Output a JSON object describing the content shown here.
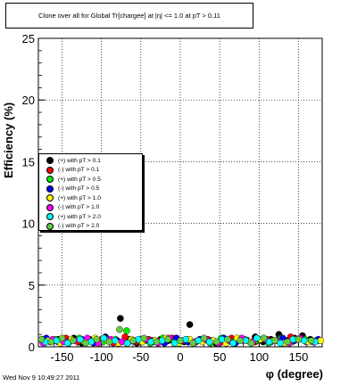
{
  "chart_data": {
    "type": "scatter",
    "title": "Clone  over all for Global Tr[chargee] at |η| <= 1.0 at pT > 0.11",
    "xlabel": "φ (degree)",
    "ylabel": "Efficiency (%)",
    "xlim": [
      -180,
      180
    ],
    "ylim": [
      0,
      25
    ],
    "x_ticks": [
      -150,
      -100,
      -50,
      0,
      50,
      100,
      150
    ],
    "y_ticks": [
      0,
      5,
      10,
      15,
      20,
      25
    ],
    "grid": true,
    "legend_position": "left",
    "series": [
      {
        "name": "(+) with pT > 0.1",
        "color": "#000000",
        "x": [
          -175,
          -165,
          -155,
          -145,
          -135,
          -125,
          -115,
          -105,
          -95,
          -85,
          -76,
          -65,
          -55,
          -45,
          -35,
          -25,
          -15,
          -5,
          5,
          12,
          25,
          35,
          45,
          55,
          65,
          75,
          85,
          95,
          105,
          115,
          125,
          135,
          145,
          155,
          165,
          175
        ],
        "y": [
          0.5,
          0.4,
          0.6,
          0.5,
          0.7,
          0.3,
          0.6,
          0.4,
          0.8,
          0.5,
          2.3,
          0.6,
          0.3,
          0.5,
          0.4,
          0.6,
          0.5,
          0.7,
          0.4,
          1.8,
          0.6,
          0.5,
          0.3,
          0.7,
          0.4,
          0.6,
          0.5,
          0.8,
          0.4,
          0.6,
          1.0,
          0.5,
          0.7,
          0.9,
          0.6,
          0.5
        ]
      },
      {
        "name": "(-) with pT > 0.1",
        "color": "#ff0000",
        "x": [
          -175,
          -160,
          -145,
          -130,
          -115,
          -100,
          -85,
          -70,
          -55,
          -40,
          -25,
          -10,
          5,
          20,
          35,
          50,
          65,
          80,
          95,
          110,
          125,
          140,
          155,
          170
        ],
        "y": [
          0.6,
          0.5,
          0.7,
          0.4,
          0.5,
          0.6,
          0.3,
          0.8,
          0.4,
          0.6,
          0.5,
          0.7,
          0.5,
          0.4,
          0.6,
          0.3,
          0.7,
          0.5,
          0.4,
          0.6,
          0.5,
          0.8,
          0.6,
          0.4
        ]
      },
      {
        "name": "(+) with pT > 0.5",
        "color": "#00ee00",
        "x": [
          -172,
          -158,
          -142,
          -128,
          -112,
          -98,
          -82,
          -68,
          -52,
          -38,
          -22,
          -8,
          8,
          22,
          38,
          52,
          68,
          82,
          98,
          112,
          128,
          142,
          158,
          172
        ],
        "y": [
          0.4,
          0.6,
          0.3,
          0.7,
          0.5,
          0.4,
          0.6,
          1.3,
          0.5,
          0.3,
          0.7,
          0.4,
          0.6,
          0.5,
          0.3,
          0.7,
          0.4,
          0.6,
          0.5,
          0.3,
          0.7,
          0.4,
          0.6,
          0.5
        ]
      },
      {
        "name": "(-) with pT > 0.5",
        "color": "#0000ff",
        "x": [
          -170,
          -155,
          -140,
          -125,
          -110,
          -95,
          -80,
          -65,
          -50,
          -35,
          -20,
          -5,
          10,
          25,
          40,
          55,
          70,
          85,
          100,
          115,
          130,
          145,
          160,
          175
        ],
        "y": [
          0.7,
          0.4,
          0.5,
          0.6,
          0.3,
          0.7,
          0.5,
          0.4,
          0.6,
          0.5,
          0.3,
          0.7,
          0.4,
          0.6,
          0.5,
          0.7,
          0.3,
          0.5,
          0.6,
          0.4,
          0.7,
          0.5,
          0.4,
          0.6
        ]
      },
      {
        "name": "(+) with pT > 1.0",
        "color": "#ffff00",
        "x": [
          -168,
          -152,
          -138,
          -122,
          -108,
          -92,
          -78,
          -62,
          -48,
          -32,
          -18,
          -2,
          12,
          28,
          42,
          58,
          72,
          88,
          102,
          118,
          132,
          148,
          162,
          178
        ],
        "y": [
          0.5,
          0.3,
          0.6,
          0.4,
          0.7,
          0.5,
          0.3,
          0.6,
          0.4,
          0.5,
          0.7,
          0.3,
          0.6,
          0.4,
          0.5,
          0.3,
          0.7,
          0.4,
          0.6,
          0.5,
          0.3,
          0.6,
          0.4,
          0.5
        ]
      },
      {
        "name": "(-) with pT > 1.0",
        "color": "#ff00ff",
        "x": [
          -174,
          -162,
          -148,
          -134,
          -118,
          -104,
          -88,
          -74,
          -58,
          -44,
          -28,
          -14,
          2,
          18,
          32,
          48,
          62,
          78,
          92,
          108,
          122,
          138,
          152,
          168
        ],
        "y": [
          0.3,
          0.6,
          0.4,
          0.5,
          0.7,
          0.3,
          0.6,
          0.4,
          0.5,
          0.6,
          0.3,
          0.7,
          0.5,
          0.4,
          0.6,
          0.3,
          0.5,
          0.7,
          0.4,
          0.6,
          0.5,
          0.3,
          0.7,
          0.4
        ]
      },
      {
        "name": "(+) with pT > 2.0",
        "color": "#00ffff",
        "x": [
          -171,
          -157,
          -143,
          -127,
          -113,
          -97,
          -83,
          -67,
          -53,
          -37,
          -23,
          -7,
          7,
          23,
          37,
          53,
          67,
          83,
          97,
          113,
          127,
          143,
          157,
          171
        ],
        "y": [
          0.4,
          0.5,
          0.3,
          0.6,
          0.4,
          0.7,
          0.5,
          0.3,
          0.6,
          0.4,
          0.5,
          0.3,
          0.6,
          0.5,
          0.4,
          0.6,
          0.3,
          0.5,
          0.7,
          0.4,
          0.3,
          0.6,
          0.5,
          0.4
        ]
      },
      {
        "name": "(-) with pT > 2.0",
        "color": "#66cc44",
        "x": [
          -176,
          -164,
          -150,
          -136,
          -120,
          -106,
          -90,
          -77,
          -60,
          -46,
          -30,
          -16,
          0,
          16,
          30,
          46,
          60,
          76,
          90,
          106,
          120,
          136,
          150,
          166
        ],
        "y": [
          0.6,
          0.4,
          0.7,
          0.5,
          0.3,
          0.6,
          0.4,
          1.4,
          0.5,
          0.7,
          0.4,
          0.6,
          0.5,
          0.3,
          0.7,
          0.4,
          0.6,
          0.5,
          0.3,
          0.7,
          0.5,
          0.4,
          0.6,
          0.5
        ]
      }
    ]
  },
  "footer": {
    "timestamp": "Wed Nov  9 10:49:27 2011"
  }
}
